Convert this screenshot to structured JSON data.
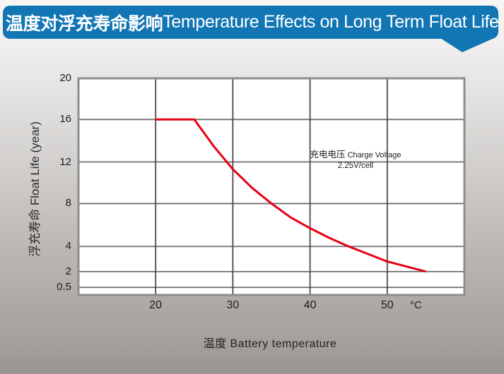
{
  "banner": {
    "title_cn": "温度对浮充寿命影响",
    "title_en": "Temperature Effects on Long Term Float Life",
    "bg_color": "#1276b5",
    "text_color": "#ffffff"
  },
  "chart_data": {
    "type": "line",
    "xlabel": "温度  Battery temperature",
    "ylabel": "浮充寿命  Float Life (year)",
    "x_axis": {
      "ticks": [
        20,
        30,
        40,
        50
      ],
      "unit": "°C",
      "range": [
        10,
        60
      ]
    },
    "y_axis": {
      "ticks": [
        20,
        16,
        12,
        8,
        4,
        2,
        0.5
      ],
      "scale": "non-linear, compressed below 4"
    },
    "grid": true,
    "legend": "none",
    "series": [
      {
        "name": "float-life-vs-temperature",
        "color": "#e60012",
        "points": [
          [
            20,
            16
          ],
          [
            25,
            16
          ],
          [
            27.5,
            13.5
          ],
          [
            30,
            11.3
          ],
          [
            32.5,
            9.5
          ],
          [
            35,
            8
          ],
          [
            37.5,
            6.7
          ],
          [
            40,
            5.7
          ],
          [
            42.5,
            4.8
          ],
          [
            45,
            4
          ],
          [
            47.5,
            3.4
          ],
          [
            50,
            2.8
          ],
          [
            52.5,
            2.4
          ],
          [
            55,
            2
          ]
        ]
      }
    ],
    "annotation": {
      "cn": "充电电压",
      "en": "Charge Voltage",
      "value": "2.25V/cell"
    }
  },
  "colors": {
    "plot_bg": "#ffffff",
    "frame": "#8d8d8d",
    "grid_h": "#6e6e6e",
    "grid_v": "#45403e"
  }
}
